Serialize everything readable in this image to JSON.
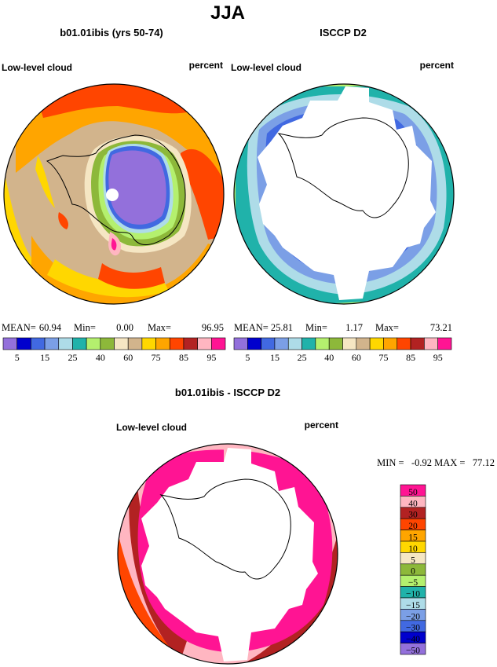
{
  "title": "JJA",
  "panels": [
    {
      "subtitle": "b01.01ibis (yrs 50-74)",
      "left_label": "Low-level cloud",
      "right_label": "percent",
      "stats": {
        "mean_label": "MEAN=",
        "mean": "60.94",
        "min_label": "Min=",
        "min": "0.00",
        "max_label": "Max=",
        "max": "96.95"
      }
    },
    {
      "subtitle": "ISCCP D2",
      "left_label": "Low-level cloud",
      "right_label": "percent",
      "stats": {
        "mean_label": "MEAN=",
        "mean": "25.81",
        "min_label": "Min=",
        "min": "1.17",
        "max_label": "Max=",
        "max": "73.21"
      }
    }
  ],
  "diff": {
    "subtitle": "b01.01ibis - ISCCP D2",
    "left_label": "Low-level cloud",
    "right_label": "percent",
    "min_max": "MIN =   -0.92 MAX =   77.12"
  },
  "chart_data": [
    {
      "type": "heatmap",
      "name": "model",
      "levels": [
        5,
        10,
        15,
        20,
        25,
        30,
        40,
        50,
        60,
        70,
        75,
        80,
        85,
        90,
        95
      ],
      "label_levels": [
        "5",
        "15",
        "25",
        "40",
        "60",
        "75",
        "85",
        "95"
      ],
      "colors": [
        "#9370DB",
        "#0000CD",
        "#4169E1",
        "#7B9FE6",
        "#AEDCE8",
        "#20B2AA",
        "#B4F06E",
        "#8DB83A",
        "#F5E6C3",
        "#D2B48C",
        "#FFD700",
        "#FFA500",
        "#FF4500",
        "#B22222",
        "#FFB6C1",
        "#FF1493"
      ]
    },
    {
      "type": "heatmap",
      "name": "obs",
      "levels": [
        5,
        10,
        15,
        20,
        25,
        30,
        40,
        50,
        60,
        70,
        75,
        80,
        85,
        90,
        95
      ],
      "label_levels": [
        "5",
        "15",
        "25",
        "40",
        "60",
        "75",
        "85",
        "95"
      ],
      "colors": [
        "#9370DB",
        "#0000CD",
        "#4169E1",
        "#7B9FE6",
        "#AEDCE8",
        "#20B2AA",
        "#B4F06E",
        "#8DB83A",
        "#F5E6C3",
        "#D2B48C",
        "#FFD700",
        "#FFA500",
        "#FF4500",
        "#B22222",
        "#FFB6C1",
        "#FF1493"
      ]
    },
    {
      "type": "heatmap",
      "name": "difference",
      "labels": [
        "50",
        "40",
        "30",
        "20",
        "15",
        "10",
        "5",
        "0",
        "−5",
        "−10",
        "−15",
        "−20",
        "−30",
        "−40",
        "−50"
      ],
      "colors": [
        "#FF1493",
        "#FFB6C1",
        "#B22222",
        "#FF4500",
        "#FFA500",
        "#FFD700",
        "#F5E6C3",
        "#8DB83A",
        "#B4F06E",
        "#20B2AA",
        "#AEDCE8",
        "#7B9FE6",
        "#4169E1",
        "#0000CD",
        "#9370DB"
      ]
    }
  ]
}
